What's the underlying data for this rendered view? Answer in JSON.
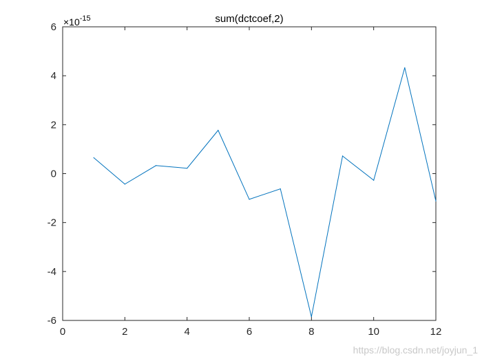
{
  "chart_data": {
    "type": "line",
    "title": "sum(dctcoef,2)",
    "xlabel": "",
    "ylabel": "",
    "xlim": [
      0,
      12
    ],
    "ylim": [
      -6,
      6
    ],
    "exponent_label": {
      "base": "×10",
      "power": "-15"
    },
    "x_ticks": [
      "0",
      "2",
      "4",
      "6",
      "8",
      "10",
      "12"
    ],
    "y_ticks": [
      "-6",
      "-4",
      "-2",
      "0",
      "2",
      "4",
      "6"
    ],
    "grid": false,
    "series": [
      {
        "color": "#0072bd",
        "x": [
          1,
          2,
          3,
          4,
          5,
          6,
          7,
          8,
          9,
          10,
          11,
          12
        ],
        "y": [
          0.65,
          -0.43,
          0.33,
          0.22,
          1.77,
          -1.05,
          -0.62,
          -5.85,
          0.72,
          -0.27,
          4.33,
          -1.12
        ]
      }
    ]
  },
  "watermark": "https://blog.csdn.net/joyjun_1"
}
